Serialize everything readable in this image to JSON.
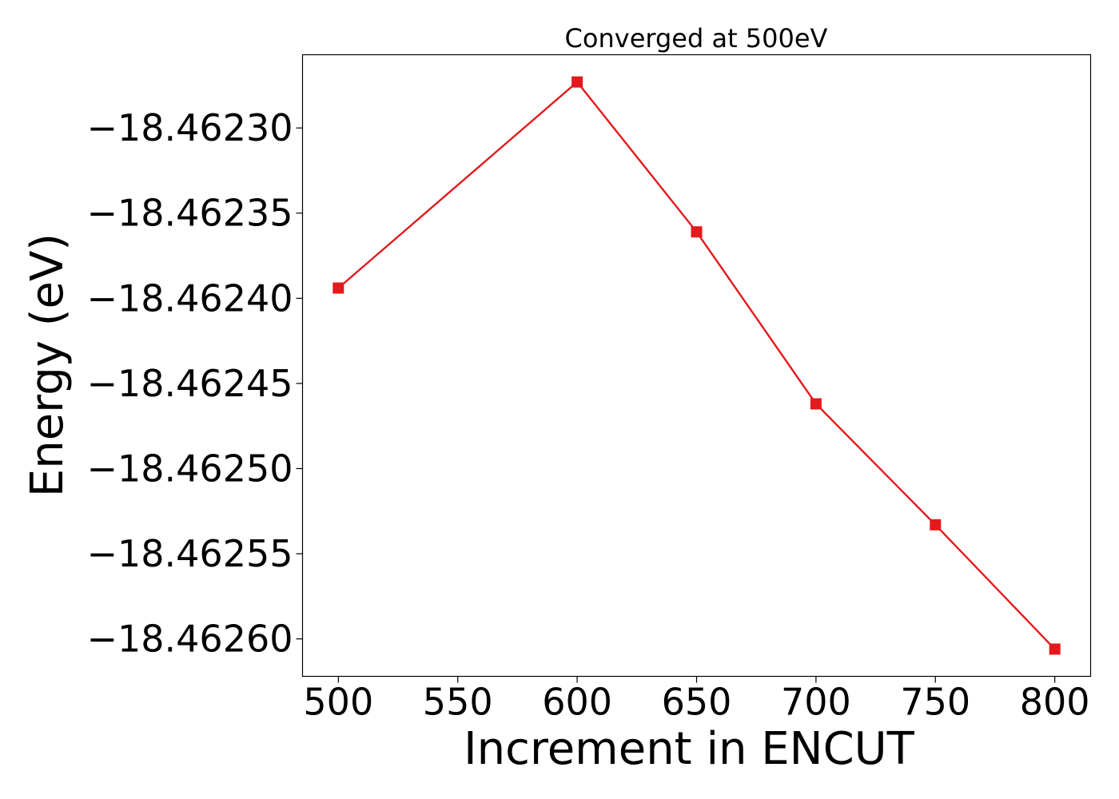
{
  "chart_data": {
    "type": "line",
    "title": "Converged at 500eV",
    "xlabel": "Increment in ENCUT",
    "ylabel": "Energy (eV)",
    "xlim": [
      485,
      815
    ],
    "ylim": [
      -18.462622,
      -18.462257
    ],
    "x_ticks": [
      500,
      550,
      600,
      650,
      700,
      750,
      800
    ],
    "x_tick_labels": [
      "500",
      "550",
      "600",
      "650",
      "700",
      "750",
      "800"
    ],
    "y_ticks": [
      -18.4623,
      -18.46235,
      -18.4624,
      -18.46245,
      -18.4625,
      -18.46255,
      -18.4626
    ],
    "y_tick_labels": [
      "−18.46230",
      "−18.46235",
      "−18.46240",
      "−18.46245",
      "−18.46250",
      "−18.46255",
      "−18.46260"
    ],
    "grid": false,
    "series": [
      {
        "color": "#e31a1c",
        "marker": "square",
        "x": [
          500,
          600,
          650,
          700,
          750,
          800
        ],
        "y": [
          -18.462394,
          -18.462273,
          -18.462361,
          -18.462462,
          -18.462533,
          -18.462606
        ]
      }
    ]
  }
}
